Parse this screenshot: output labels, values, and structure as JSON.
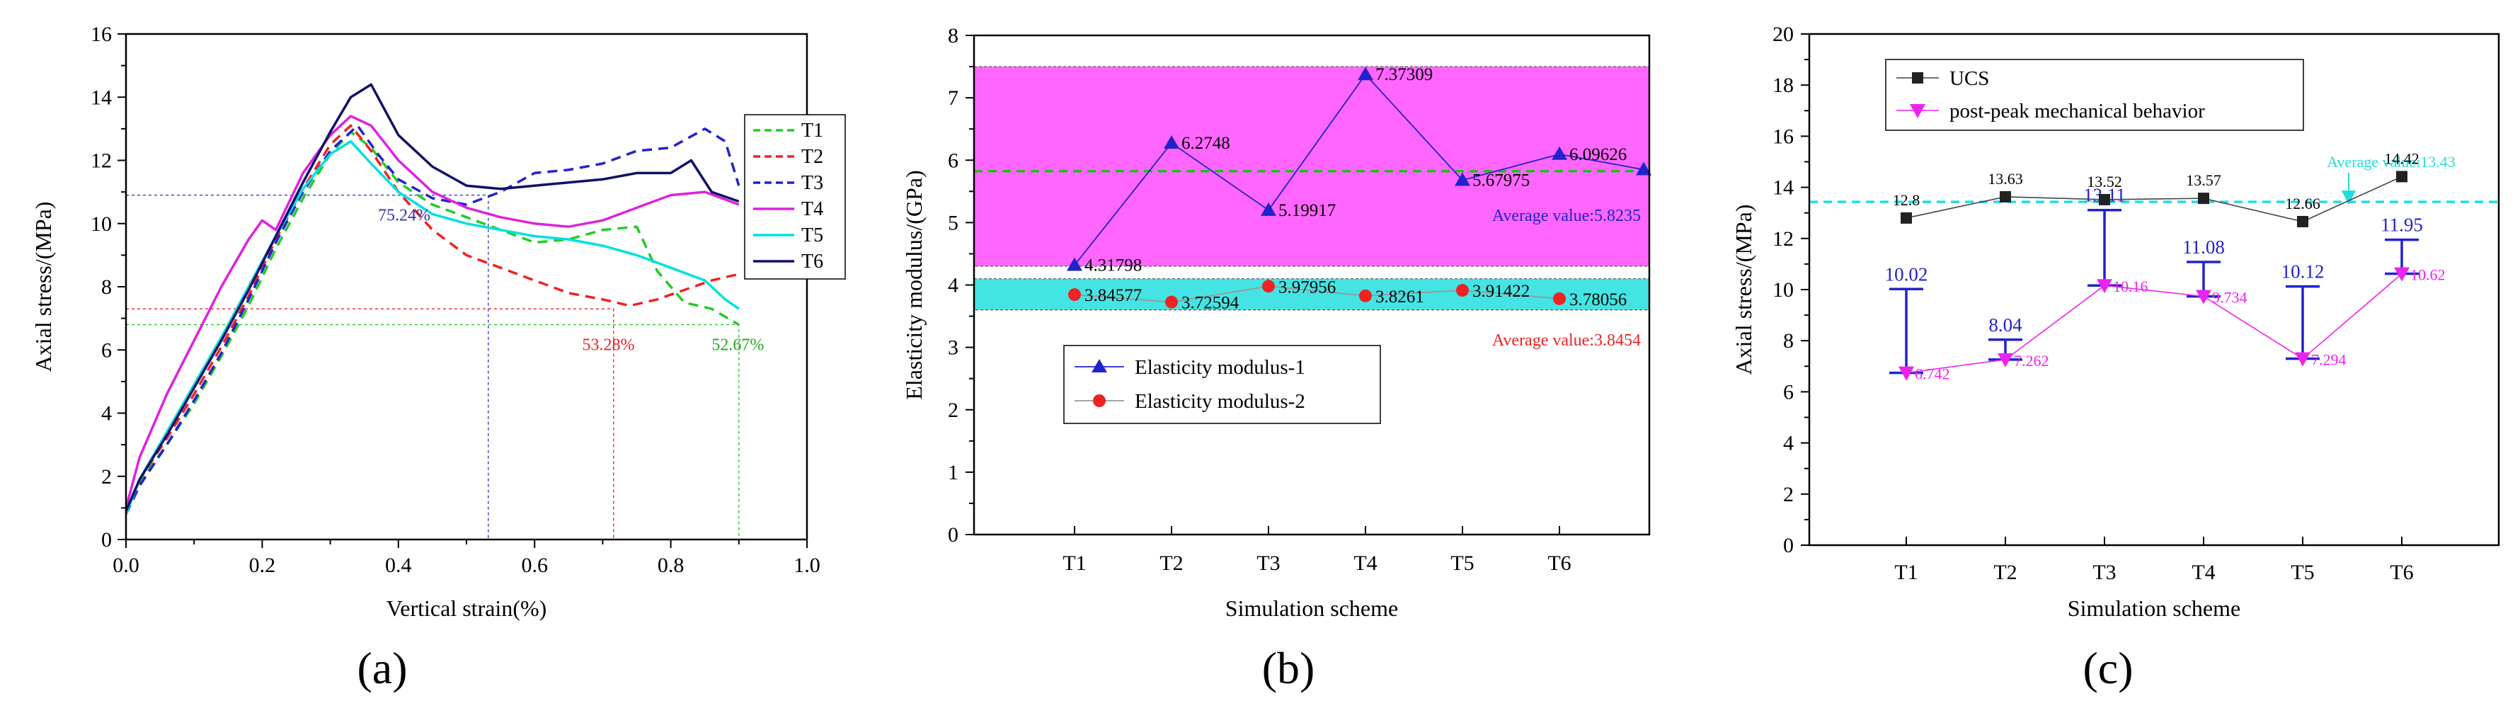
{
  "chart_data": [
    {
      "type": "line",
      "panel_label": "a",
      "xlabel": "Vertical strain(%)",
      "ylabel": "Axial stress/(MPa)",
      "xlim": [
        0.0,
        1.0
      ],
      "ylim": [
        0,
        16
      ],
      "xticks": [
        "0.0",
        "0.2",
        "0.4",
        "0.6",
        "0.8",
        "1.0"
      ],
      "yticks": [
        "0",
        "2",
        "4",
        "6",
        "8",
        "10",
        "12",
        "14",
        "16"
      ],
      "legend": [
        "T1",
        "T2",
        "T3",
        "T4",
        "T5",
        "T6"
      ],
      "series": [
        {
          "name": "T1",
          "color": "#22cc22",
          "dash": "dashed",
          "x": [
            0,
            0.02,
            0.06,
            0.1,
            0.14,
            0.18,
            0.22,
            0.26,
            0.3,
            0.33,
            0.36,
            0.4,
            0.45,
            0.5,
            0.55,
            0.6,
            0.65,
            0.7,
            0.75,
            0.78,
            0.82,
            0.86,
            0.9
          ],
          "y": [
            0.8,
            1.8,
            3.0,
            4.3,
            5.8,
            7.4,
            9.2,
            10.8,
            12.2,
            12.9,
            12.4,
            11.3,
            10.6,
            10.2,
            9.8,
            9.4,
            9.5,
            9.8,
            9.9,
            8.5,
            7.5,
            7.3,
            6.8
          ]
        },
        {
          "name": "T2",
          "color": "#ee2222",
          "dash": "dashed",
          "x": [
            0,
            0.02,
            0.06,
            0.1,
            0.14,
            0.18,
            0.22,
            0.26,
            0.3,
            0.33,
            0.36,
            0.4,
            0.45,
            0.5,
            0.55,
            0.6,
            0.65,
            0.7,
            0.74,
            0.78,
            0.82,
            0.86,
            0.9
          ],
          "y": [
            0.9,
            1.9,
            3.2,
            4.6,
            6.1,
            7.7,
            9.5,
            11.1,
            12.5,
            13.1,
            12.3,
            11.0,
            9.8,
            9.0,
            8.6,
            8.2,
            7.8,
            7.6,
            7.4,
            7.6,
            7.9,
            8.2,
            8.4
          ]
        },
        {
          "name": "T3",
          "color": "#2222cc",
          "dash": "dashed",
          "x": [
            0,
            0.02,
            0.06,
            0.1,
            0.14,
            0.18,
            0.22,
            0.26,
            0.3,
            0.34,
            0.37,
            0.4,
            0.45,
            0.5,
            0.55,
            0.6,
            0.65,
            0.7,
            0.75,
            0.8,
            0.85,
            0.88,
            0.9
          ],
          "y": [
            0.8,
            1.7,
            3.0,
            4.4,
            5.9,
            7.6,
            9.4,
            11.0,
            12.3,
            13.1,
            12.2,
            11.4,
            10.8,
            10.6,
            11.0,
            11.6,
            11.7,
            11.9,
            12.3,
            12.4,
            13.0,
            12.6,
            11.2
          ]
        },
        {
          "name": "T4",
          "color": "#dd22dd",
          "dash": "solid",
          "x": [
            0,
            0.02,
            0.06,
            0.1,
            0.14,
            0.18,
            0.2,
            0.22,
            0.26,
            0.3,
            0.33,
            0.36,
            0.4,
            0.45,
            0.5,
            0.55,
            0.6,
            0.65,
            0.7,
            0.75,
            0.8,
            0.85,
            0.9
          ],
          "y": [
            1.0,
            2.6,
            4.6,
            6.3,
            8.0,
            9.5,
            10.1,
            9.8,
            11.6,
            12.8,
            13.4,
            13.1,
            12.0,
            11.0,
            10.5,
            10.2,
            10.0,
            9.9,
            10.1,
            10.5,
            10.9,
            11.0,
            10.6
          ]
        },
        {
          "name": "T5",
          "color": "#00e0e0",
          "dash": "solid",
          "x": [
            0,
            0.02,
            0.06,
            0.1,
            0.14,
            0.18,
            0.22,
            0.26,
            0.3,
            0.33,
            0.36,
            0.4,
            0.45,
            0.5,
            0.55,
            0.6,
            0.65,
            0.7,
            0.75,
            0.8,
            0.85,
            0.88,
            0.9
          ],
          "y": [
            0.8,
            1.9,
            3.4,
            4.9,
            6.4,
            8.0,
            9.6,
            11.1,
            12.2,
            12.6,
            11.9,
            11.0,
            10.3,
            10.0,
            9.8,
            9.6,
            9.5,
            9.3,
            9.0,
            8.6,
            8.2,
            7.6,
            7.3
          ]
        },
        {
          "name": "T6",
          "color": "#111166",
          "dash": "solid",
          "x": [
            0,
            0.02,
            0.06,
            0.1,
            0.14,
            0.18,
            0.22,
            0.26,
            0.3,
            0.33,
            0.36,
            0.4,
            0.45,
            0.5,
            0.55,
            0.6,
            0.65,
            0.7,
            0.75,
            0.8,
            0.83,
            0.86,
            0.9
          ],
          "y": [
            0.9,
            1.9,
            3.3,
            4.8,
            6.3,
            7.9,
            9.6,
            11.3,
            12.9,
            14.0,
            14.4,
            12.8,
            11.8,
            11.2,
            11.1,
            11.2,
            11.3,
            11.4,
            11.6,
            11.6,
            12.0,
            11.0,
            10.7
          ]
        }
      ],
      "guides": [
        {
          "x": 0.532,
          "y": 10.9,
          "color": "#4444dd"
        },
        {
          "x": 0.716,
          "y": 7.3,
          "color": "#ee3333"
        },
        {
          "x": 0.9,
          "y": 6.8,
          "color": "#33cc33"
        }
      ],
      "annotations": [
        {
          "text": "75.24%",
          "x": 0.37,
          "y": 10.1,
          "color": "#3333aa"
        },
        {
          "text": "53.28%",
          "x": 0.67,
          "y": 6.0,
          "color": "#ee2222"
        },
        {
          "text": "52.67%",
          "x": 0.86,
          "y": 6.0,
          "color": "#22aa22"
        }
      ]
    },
    {
      "type": "line",
      "panel_label": "b",
      "xlabel": "Simulation scheme",
      "ylabel": "Elasticity modulus/(GPa)",
      "categories": [
        "T1",
        "T2",
        "T3",
        "T4",
        "T5",
        "T6"
      ],
      "ylim": [
        0,
        8
      ],
      "yticks": [
        "0",
        "1",
        "2",
        "3",
        "4",
        "5",
        "6",
        "7",
        "8"
      ],
      "series": [
        {
          "name": "Elasticity modulus-1",
          "color": "#2222cc",
          "marker": "triangle",
          "values": [
            4.31798,
            6.2748,
            5.19917,
            7.37309,
            5.67975,
            6.09626
          ],
          "labels": [
            "4.31798",
            "6.2748",
            "5.19917",
            "7.37309",
            "5.67975",
            "6.09626"
          ],
          "end_point": 5.85
        },
        {
          "name": "Elasticity modulus-2",
          "color": "#ee2222",
          "marker": "circle",
          "values": [
            3.84577,
            3.72594,
            3.97956,
            3.8261,
            3.91422,
            3.78056
          ],
          "labels": [
            "3.84577",
            "3.72594",
            "3.97956",
            "3.8261",
            "3.91422",
            "3.78056"
          ]
        }
      ],
      "bands": [
        {
          "ymin": 4.3,
          "ymax": 7.5,
          "color": "#ff66ff"
        },
        {
          "ymin": 3.6,
          "ymax": 4.1,
          "color": "#44e4e4"
        }
      ],
      "average_lines": [
        {
          "value": 5.8235,
          "label": "Average value:5.8235",
          "color": "#22bb22",
          "text_color": "#2222cc"
        },
        {
          "value": 3.8454,
          "label": "Average value:3.8454",
          "text_color": "#ee2222"
        }
      ]
    },
    {
      "type": "line",
      "panel_label": "c",
      "xlabel": "Simulation scheme",
      "ylabel": "Axial stress/(MPa)",
      "categories": [
        "T1",
        "T2",
        "T3",
        "T4",
        "T5",
        "T6"
      ],
      "ylim": [
        0,
        20
      ],
      "yticks": [
        "0",
        "2",
        "4",
        "6",
        "8",
        "10",
        "12",
        "14",
        "16",
        "18",
        "20"
      ],
      "series": [
        {
          "name": "UCS",
          "color": "#222222",
          "marker": "square",
          "values": [
            12.8,
            13.63,
            13.52,
            13.57,
            12.66,
            14.42
          ],
          "labels": [
            "12.8",
            "13.63",
            "13.52",
            "13.57",
            "12.66",
            "14.42"
          ]
        },
        {
          "name": "post-peak mechanical behavior",
          "color": "#ee22ee",
          "marker": "triangle-down",
          "values": [
            6.742,
            7.262,
            10.16,
            9.734,
            7.294,
            10.62
          ],
          "labels": [
            "6.742",
            "7.262",
            "10.16",
            "9.734",
            "7.294",
            "10.62"
          ]
        }
      ],
      "error_bars": {
        "color": "#2222cc",
        "upper": [
          10.02,
          8.04,
          13.11,
          11.08,
          10.12,
          11.95
        ],
        "labels": [
          "10.02",
          "8.04",
          "13.11",
          "11.08",
          "10.12",
          "11.95"
        ]
      },
      "average_line": {
        "value": 13.43,
        "label": "Average value:13.43",
        "color": "#22dddd"
      }
    }
  ],
  "panel_labels": [
    "(a)",
    "(b)",
    "(c)"
  ]
}
